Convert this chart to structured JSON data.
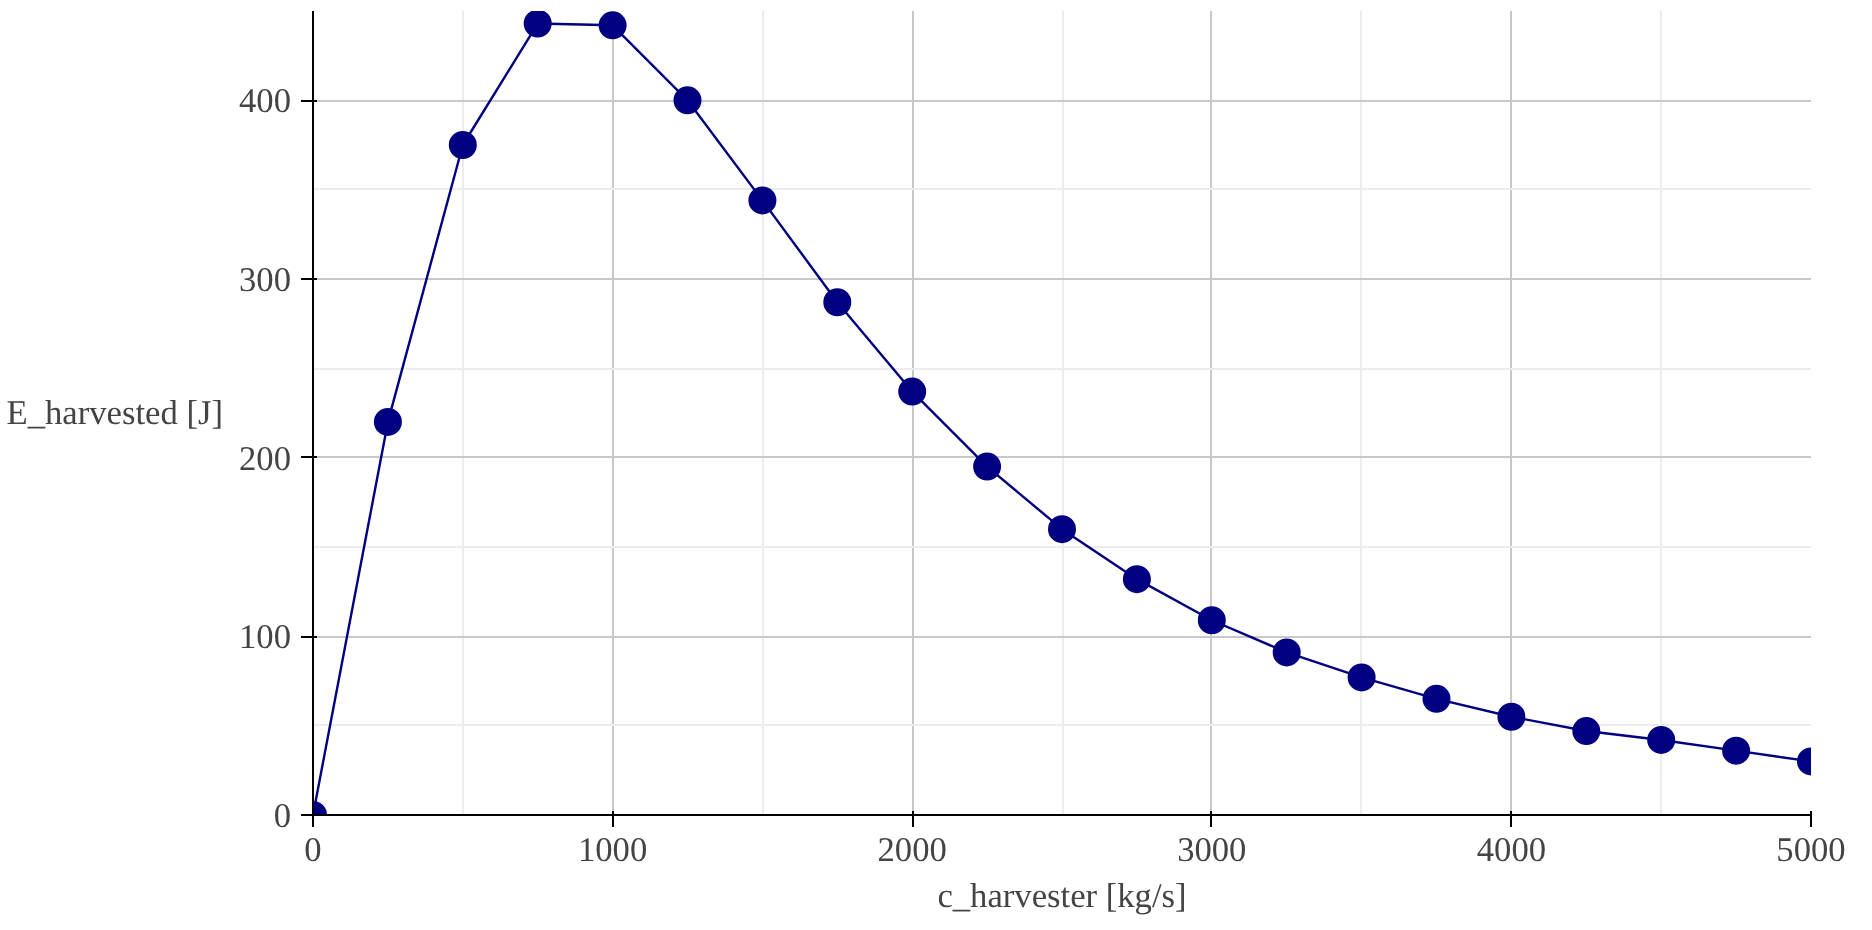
{
  "chart_data": {
    "type": "line",
    "xlabel": "c_harvester [kg/s]",
    "ylabel": "E_harvested [J]",
    "x": [
      0,
      250,
      500,
      750,
      1000,
      1250,
      1500,
      1750,
      2000,
      2250,
      2500,
      2750,
      3000,
      3250,
      3500,
      3750,
      4000,
      4250,
      4500,
      4750,
      5000
    ],
    "series": [
      {
        "color": "#000080",
        "values": [
          0,
          220,
          375,
          443,
          442,
          400,
          344,
          287,
          237,
          195,
          160,
          132,
          109,
          91,
          77,
          65,
          55,
          47,
          42,
          36,
          30
        ]
      }
    ],
    "xlim": [
      0,
      5000
    ],
    "ylim": [
      0,
      450
    ],
    "xticks": [
      0,
      1000,
      2000,
      3000,
      4000,
      5000
    ],
    "yticks": [
      0,
      100,
      200,
      300,
      400
    ],
    "grid": true,
    "marker": "circle",
    "line_style": "solid"
  }
}
